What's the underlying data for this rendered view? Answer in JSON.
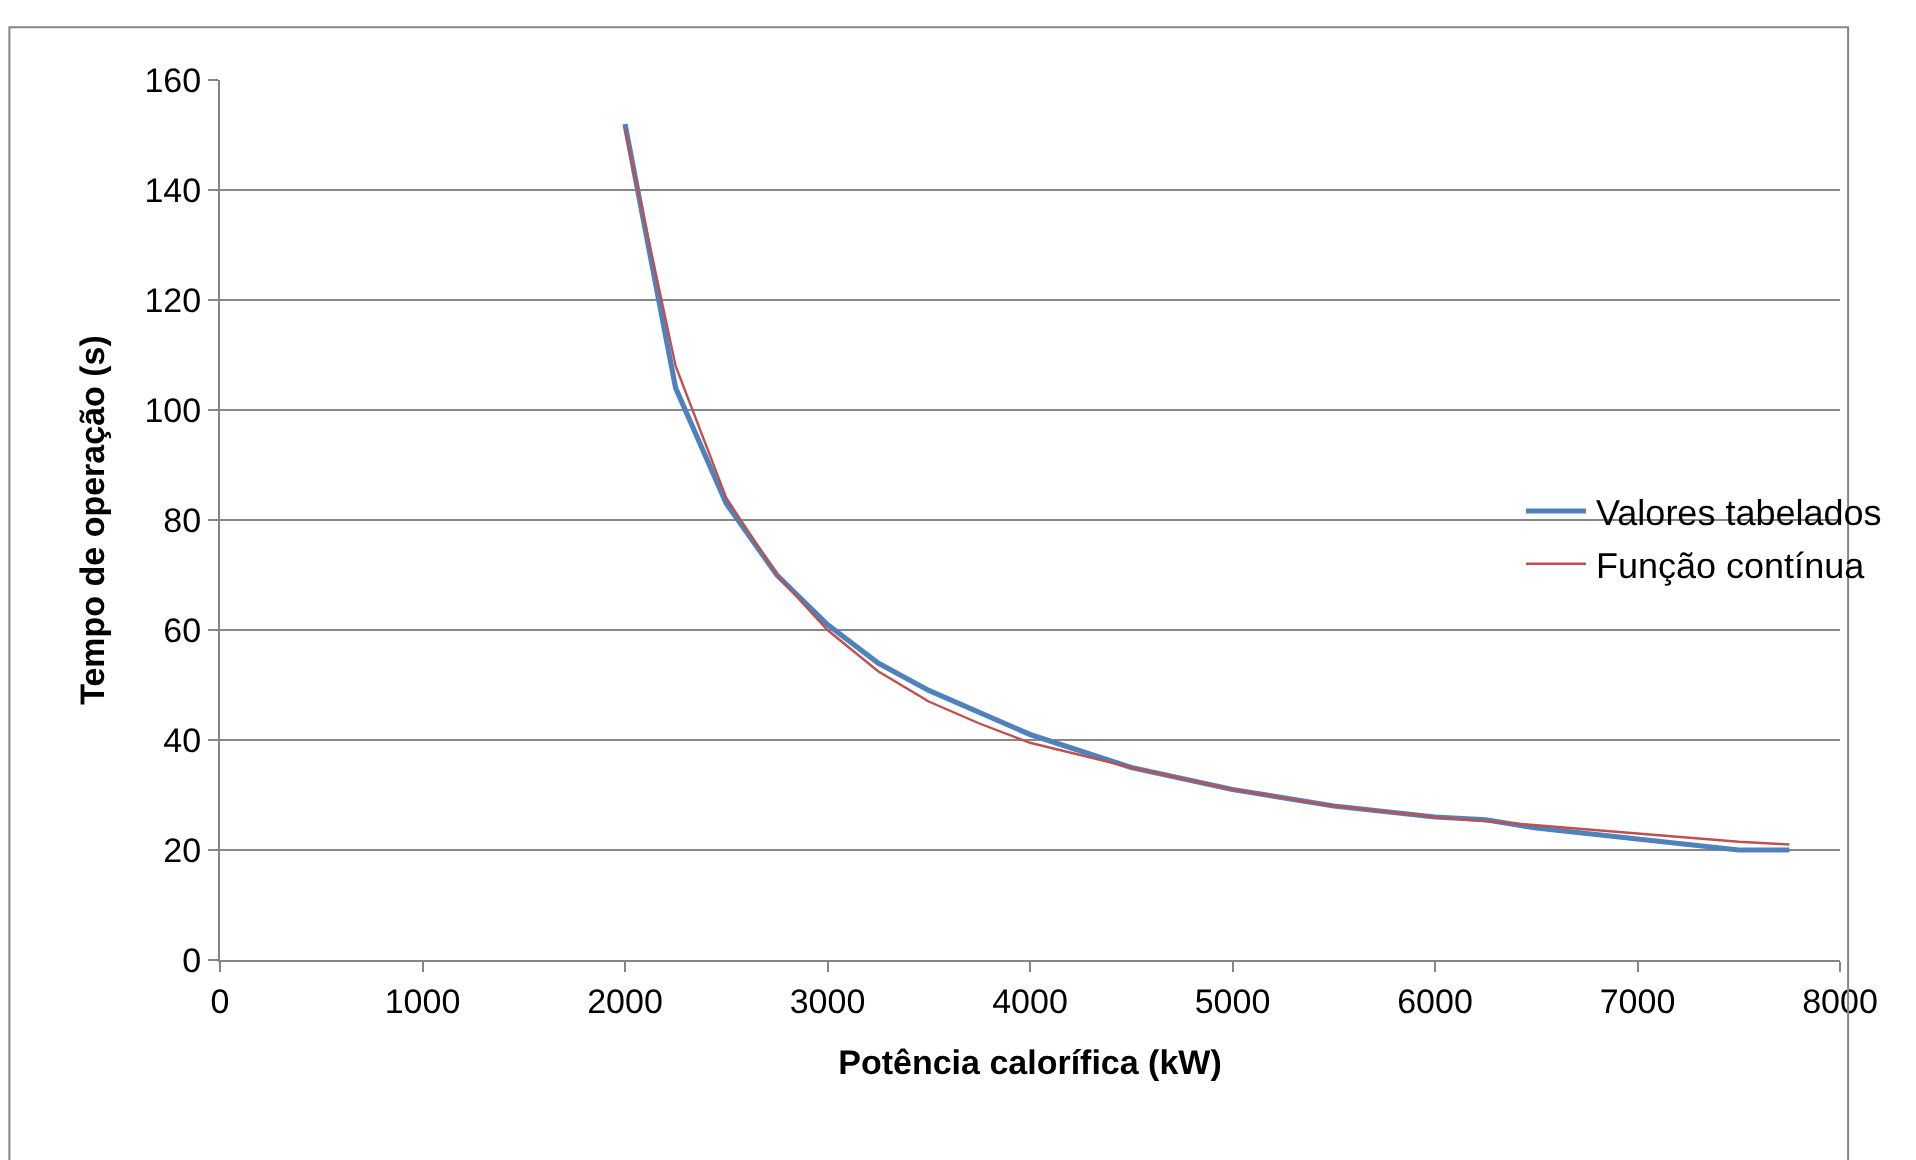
{
  "chart_data": {
    "type": "line",
    "xlabel": "Potência calorífica (kW)",
    "ylabel": "Tempo de operação (s)",
    "xlim": [
      0,
      8000
    ],
    "xticks": [
      0,
      1000,
      2000,
      3000,
      4000,
      5000,
      6000,
      7000,
      8000
    ],
    "ylim": [
      0,
      160
    ],
    "yticks": [
      0,
      20,
      40,
      60,
      80,
      100,
      120,
      140,
      160
    ],
    "grid": "y",
    "legend": "right",
    "marker": "none",
    "line_style": "solid",
    "series": [
      {
        "name": "Valores tabelados",
        "color": "#4f81bd",
        "x": [
          2000,
          2250,
          2500,
          2750,
          3000,
          3250,
          3500,
          4000,
          4500,
          5000,
          5500,
          6000,
          6250,
          6500,
          7000,
          7500,
          7750
        ],
        "values": [
          152,
          104,
          83,
          70,
          61,
          54,
          49,
          41,
          35,
          31,
          28,
          26,
          25.5,
          24,
          22,
          20,
          20
        ]
      },
      {
        "name": "Função contínua",
        "color": "#c0504d",
        "x": [
          2000,
          2250,
          2500,
          2750,
          3000,
          3250,
          3500,
          3750,
          4000,
          4500,
          5000,
          5500,
          6000,
          6500,
          7000,
          7500,
          7750
        ],
        "values": [
          151,
          108,
          84,
          70,
          60,
          52.5,
          47,
          43,
          39.5,
          35,
          31,
          28,
          26,
          24.5,
          23,
          21.5,
          21
        ]
      }
    ]
  }
}
